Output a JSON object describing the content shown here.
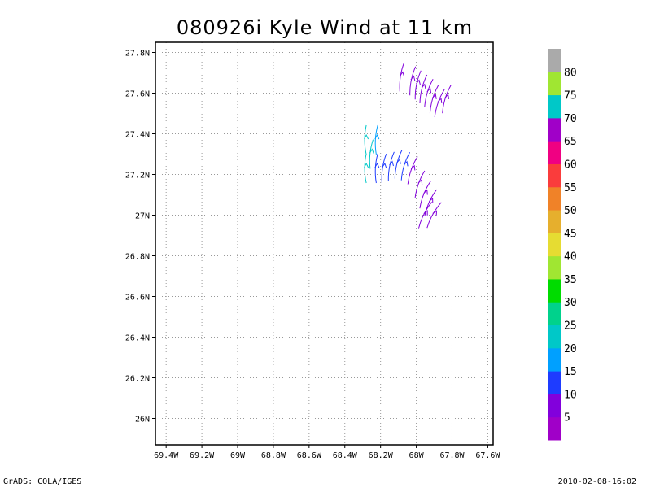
{
  "chart_data": {
    "type": "vector-field",
    "title": "080926i Kyle Wind at 11 km",
    "x_ticks": [
      "69.4W",
      "69.2W",
      "69W",
      "68.8W",
      "68.6W",
      "68.4W",
      "68.2W",
      "68W",
      "67.8W",
      "67.6W"
    ],
    "x_values": [
      -69.4,
      -69.2,
      -69.0,
      -68.8,
      -68.6,
      -68.4,
      -68.2,
      -68.0,
      -67.8,
      -67.6
    ],
    "y_ticks": [
      "26N",
      "26.2N",
      "26.4N",
      "26.6N",
      "26.8N",
      "27N",
      "27.2N",
      "27.4N",
      "27.6N",
      "27.8N"
    ],
    "y_values": [
      26.0,
      26.2,
      26.4,
      26.6,
      26.8,
      27.0,
      27.2,
      27.4,
      27.6,
      27.8
    ],
    "xlim": [
      -69.46,
      -67.57
    ],
    "ylim": [
      25.87,
      27.85
    ],
    "grid": true,
    "colorbar": {
      "labels": [
        "5",
        "10",
        "15",
        "20",
        "25",
        "30",
        "35",
        "40",
        "45",
        "50",
        "55",
        "60",
        "65",
        "70",
        "75",
        "80"
      ],
      "colors": [
        "#a000c8",
        "#8200dc",
        "#1e3cff",
        "#00a0ff",
        "#00c8c8",
        "#00d28c",
        "#00dc00",
        "#a0e632",
        "#e6dc32",
        "#e6af2d",
        "#f08228",
        "#fa3c3c",
        "#f00082",
        "#a000c8",
        "#00c8c8",
        "#a0e632",
        "#aaaaaa"
      ]
    },
    "vectors": [
      {
        "lon": -68.28,
        "lat": 27.37,
        "u": 0.0,
        "v": 1.0,
        "speed": 22
      },
      {
        "lon": -68.28,
        "lat": 27.23,
        "u": 0.0,
        "v": 1.0,
        "speed": 24
      },
      {
        "lon": -68.25,
        "lat": 27.3,
        "u": 0.1,
        "v": 1.0,
        "speed": 20
      },
      {
        "lon": -68.22,
        "lat": 27.37,
        "u": 0.05,
        "v": 1.0,
        "speed": 15
      },
      {
        "lon": -68.22,
        "lat": 27.23,
        "u": 0.05,
        "v": 1.0,
        "speed": 14
      },
      {
        "lon": -68.18,
        "lat": 27.23,
        "u": 0.15,
        "v": 1.0,
        "speed": 13
      },
      {
        "lon": -68.14,
        "lat": 27.24,
        "u": 0.2,
        "v": 1.0,
        "speed": 12
      },
      {
        "lon": -68.1,
        "lat": 27.25,
        "u": 0.25,
        "v": 1.0,
        "speed": 11
      },
      {
        "lon": -68.06,
        "lat": 27.24,
        "u": 0.3,
        "v": 1.0,
        "speed": 10
      },
      {
        "lon": -68.02,
        "lat": 27.22,
        "u": 0.35,
        "v": 1.0,
        "speed": 9
      },
      {
        "lon": -67.98,
        "lat": 27.15,
        "u": 0.35,
        "v": 1.0,
        "speed": 8
      },
      {
        "lon": -67.95,
        "lat": 27.1,
        "u": 0.4,
        "v": 1.0,
        "speed": 7
      },
      {
        "lon": -67.92,
        "lat": 27.06,
        "u": 0.45,
        "v": 1.0,
        "speed": 6
      },
      {
        "lon": -67.9,
        "lat": 27.0,
        "u": 0.5,
        "v": 0.9,
        "speed": 6
      },
      {
        "lon": -67.95,
        "lat": 27.0,
        "u": 0.5,
        "v": 1.0,
        "speed": 6
      },
      {
        "lon": -68.08,
        "lat": 27.68,
        "u": 0.15,
        "v": 1.0,
        "speed": 7
      },
      {
        "lon": -68.02,
        "lat": 27.66,
        "u": 0.2,
        "v": 1.0,
        "speed": 7
      },
      {
        "lon": -67.99,
        "lat": 27.64,
        "u": 0.2,
        "v": 1.0,
        "speed": 6
      },
      {
        "lon": -67.96,
        "lat": 27.62,
        "u": 0.25,
        "v": 1.0,
        "speed": 6
      },
      {
        "lon": -67.93,
        "lat": 27.6,
        "u": 0.3,
        "v": 1.0,
        "speed": 6
      },
      {
        "lon": -67.9,
        "lat": 27.57,
        "u": 0.3,
        "v": 1.0,
        "speed": 6
      },
      {
        "lon": -67.87,
        "lat": 27.55,
        "u": 0.35,
        "v": 1.0,
        "speed": 6
      },
      {
        "lon": -67.83,
        "lat": 27.57,
        "u": 0.3,
        "v": 1.0,
        "speed": 6
      }
    ]
  },
  "footer": {
    "left": "GrADS: COLA/IGES",
    "right": "2010-02-08-16:02"
  }
}
